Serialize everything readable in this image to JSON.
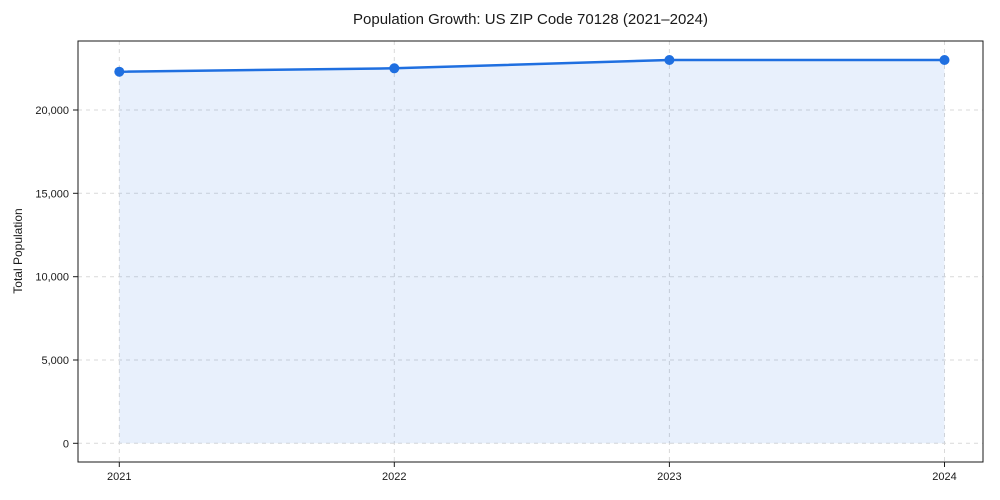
{
  "chart_data": {
    "type": "area",
    "title": "Population Growth: US ZIP Code 70128 (2021–2024)",
    "xlabel": "",
    "ylabel": "Total Population",
    "x": [
      2021,
      2022,
      2023,
      2024
    ],
    "series": [
      {
        "name": "Total Population",
        "values": [
          22300,
          22500,
          23000,
          23000
        ]
      }
    ],
    "x_tick_labels": [
      "2021",
      "2022",
      "2023",
      "2024"
    ],
    "y_ticks": [
      0,
      5000,
      10000,
      15000,
      20000
    ],
    "y_tick_labels": [
      "0",
      "5,000",
      "10,000",
      "15,000",
      "20,000"
    ],
    "xlim": [
      2020.85,
      2024.14
    ],
    "ylim": [
      -1120,
      24140
    ],
    "grid": true,
    "grid_style": "dashed",
    "legend": "none",
    "marker": "circle",
    "colors": {
      "line": "#1f6fe0",
      "fill": "#1f6fe0",
      "marker": "#1f6fe0",
      "grid": "#d9d9d9",
      "spine": "#1a1a1a",
      "text": "#1a1a1a",
      "background": "#ffffff"
    },
    "fill_opacity": 0.1
  }
}
